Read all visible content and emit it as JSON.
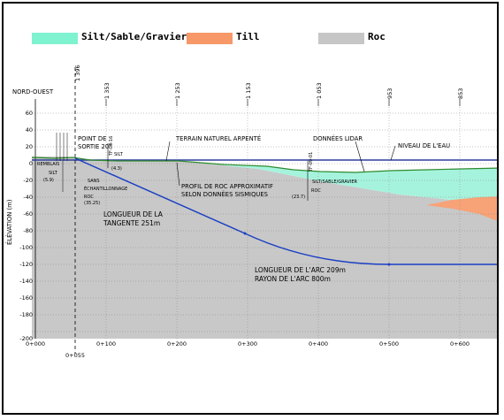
{
  "legend": {
    "items": [
      {
        "label": "Silt/Sable/Gravier",
        "color": "#7ff2cf"
      },
      {
        "label": "Till",
        "color": "#f79868"
      },
      {
        "label": "Roc",
        "color": "#c6c6c6"
      }
    ]
  },
  "colors": {
    "ground_fill": "#c8c8c8",
    "sediment_fill": "#a6f3dd",
    "till_fill": "#f7a277",
    "drill_path": "#1a3fc4",
    "water_line": "#2e3f9e",
    "terrain_line": "#2e8b2e",
    "grid": "#888888"
  },
  "diagram": {
    "direction_label": "NORD-OUEST",
    "y_axis_label": "ÉLÉVATION (m)",
    "y_ticks": [
      "60",
      "40",
      "20",
      "0",
      "-20",
      "-40",
      "-60",
      "-80",
      "-100",
      "-120",
      "-140",
      "-160",
      "-180",
      "-200"
    ],
    "x_ticks": [
      "0+000",
      "0+100",
      "0+200",
      "0+300",
      "0+400",
      "0+500",
      "0+600"
    ],
    "exit_station": "0+055",
    "top_stations": [
      "1 396",
      "1 353",
      "1 253",
      "1 153",
      "1 053",
      "953",
      "853"
    ],
    "annotations": {
      "point_sortie_1": "POINT DE",
      "point_sortie_2": "SORTIE 20°",
      "terrain": "TERRAIN NATUREL ARPENTÉ",
      "lidar": "DONNÉES LIDAR",
      "niveau": "NIVEAU DE L'EAU",
      "profil_1": "PROFIL DE ROC APPROXIMATIF",
      "profil_2": "SELON DONNÉES SISMIQUES",
      "tangente_1": "LONGUEUR DE LA",
      "tangente_2": "TANGENTE 251m",
      "arc_1": "LONGUEUR DE L'ARC 209m",
      "arc_2": "RAYON DE L'ARC 800m",
      "sans_1": "SANS",
      "sans_2": "ÉCHANTILLONNAGE",
      "roc_left": "ROC",
      "roc_left_depth": "(35.25)",
      "remblai": "REMBLAIS",
      "silt_left": "SILT",
      "depth_59": "(5.9)",
      "silt_mid": "SILT",
      "depth_43": "(4.3)",
      "borehole_mid": "TF-03-16",
      "borehole_right": "TF-09-01",
      "ssg_right": "SILT/SABLE/GRAVIER",
      "roc_right": "ROC",
      "depth_237": "(23.7)"
    }
  }
}
